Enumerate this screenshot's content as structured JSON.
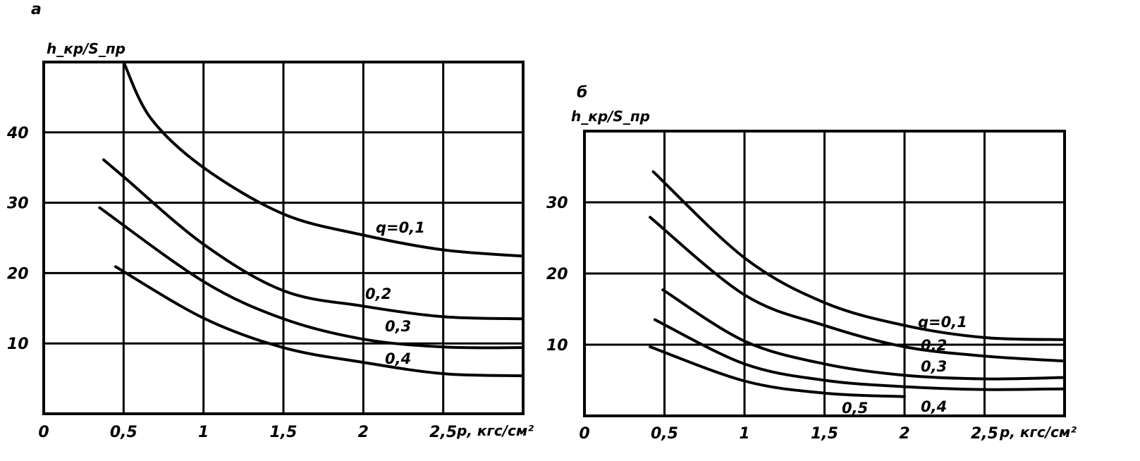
{
  "chart_data": [
    {
      "type": "line",
      "panel_label": "а",
      "ylabel": "h_кр/S_пр",
      "xlabel": "p, кгс/см²",
      "xlim": [
        0,
        3
      ],
      "ylim": [
        0,
        50
      ],
      "grid": true,
      "x_ticks": [
        "0",
        "0,5",
        "1",
        "1,5",
        "2",
        "2,5"
      ],
      "x_tick_values": [
        0,
        0.5,
        1,
        1.5,
        2,
        2.5
      ],
      "y_ticks": [
        "10",
        "20",
        "30",
        "40"
      ],
      "y_tick_values": [
        10,
        20,
        30,
        40
      ],
      "series": [
        {
          "name": "q=0,1",
          "label": "q=0,1",
          "x": [
            0.5,
            0.67,
            1,
            1.5,
            2,
            2.5,
            3
          ],
          "y": [
            50,
            42,
            35,
            28.4,
            25.4,
            23.3,
            22.4
          ]
        },
        {
          "name": "0,2",
          "label": "0,2",
          "x": [
            0.375,
            0.5,
            1,
            1.5,
            2,
            2.5,
            3
          ],
          "y": [
            36.1,
            33.7,
            24.1,
            17.5,
            15.3,
            13.8,
            13.5
          ]
        },
        {
          "name": "0,3",
          "label": "0,3",
          "x": [
            0.35,
            1,
            1.5,
            2,
            2.5,
            3
          ],
          "y": [
            29.3,
            18.8,
            13.5,
            10.6,
            9.5,
            9.4
          ]
        },
        {
          "name": "0,4",
          "label": "0,4",
          "x": [
            0.45,
            1,
            1.5,
            2,
            2.5,
            3
          ],
          "y": [
            20.9,
            13.6,
            9.4,
            7.3,
            5.7,
            5.4
          ]
        }
      ]
    },
    {
      "type": "line",
      "panel_label": "б",
      "ylabel": "h_кр/S_пр",
      "xlabel": "p, кгс/см²",
      "xlim": [
        0,
        3
      ],
      "ylim": [
        0,
        40
      ],
      "grid": true,
      "x_ticks": [
        "0",
        "0,5",
        "1",
        "1,5",
        "2",
        "2,5"
      ],
      "x_tick_values": [
        0,
        0.5,
        1,
        1.5,
        2,
        2.5
      ],
      "y_ticks": [
        "10",
        "20",
        "30"
      ],
      "y_tick_values": [
        10,
        20,
        30
      ],
      "series": [
        {
          "name": "q=0,1",
          "label": "q=0,1",
          "x": [
            0.43,
            1,
            1.5,
            2,
            2.5,
            3
          ],
          "y": [
            34.3,
            22.2,
            15.9,
            12.7,
            11,
            10.7
          ]
        },
        {
          "name": "0,2",
          "label": "0,2",
          "x": [
            0.41,
            1,
            1.5,
            2,
            2.5,
            3
          ],
          "y": [
            27.9,
            17,
            12.7,
            9.7,
            8.4,
            7.7
          ]
        },
        {
          "name": "0,3",
          "label": "0,3",
          "x": [
            0.49,
            1,
            1.5,
            2,
            2.5,
            3
          ],
          "y": [
            17.7,
            10.5,
            7.3,
            5.7,
            5.2,
            5.4
          ]
        },
        {
          "name": "0,4",
          "label": "0,4",
          "x": [
            0.44,
            1,
            1.5,
            2,
            2.5,
            3
          ],
          "y": [
            13.5,
            7.3,
            5,
            4.1,
            3.7,
            3.8
          ]
        },
        {
          "name": "0,5",
          "label": "0,5",
          "x": [
            0.41,
            1,
            1.5,
            2
          ],
          "y": [
            9.7,
            4.9,
            3.2,
            2.7
          ]
        }
      ]
    }
  ]
}
